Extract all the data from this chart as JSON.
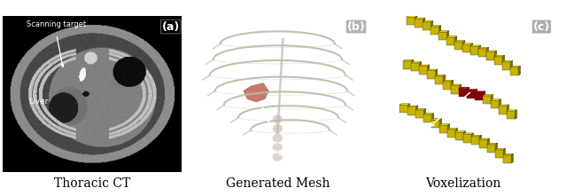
{
  "figure_width": 6.4,
  "figure_height": 2.21,
  "dpi": 100,
  "background_color": "#ffffff",
  "panel_bg_a": "#000000",
  "panel_bg_b": "#696969",
  "panel_bg_c": "#5a5a5a",
  "captions": [
    "Thoracic CT",
    "Generated Mesh",
    "Voxelization"
  ],
  "caption_fontsize": 10,
  "yellow_color": "#c8b400",
  "red_color": "#880000",
  "rib_color_b": "#c0b8a8",
  "white_text": "#ffffff",
  "annotation_fontsize": 6.0,
  "panel_label_fontsize": 9
}
